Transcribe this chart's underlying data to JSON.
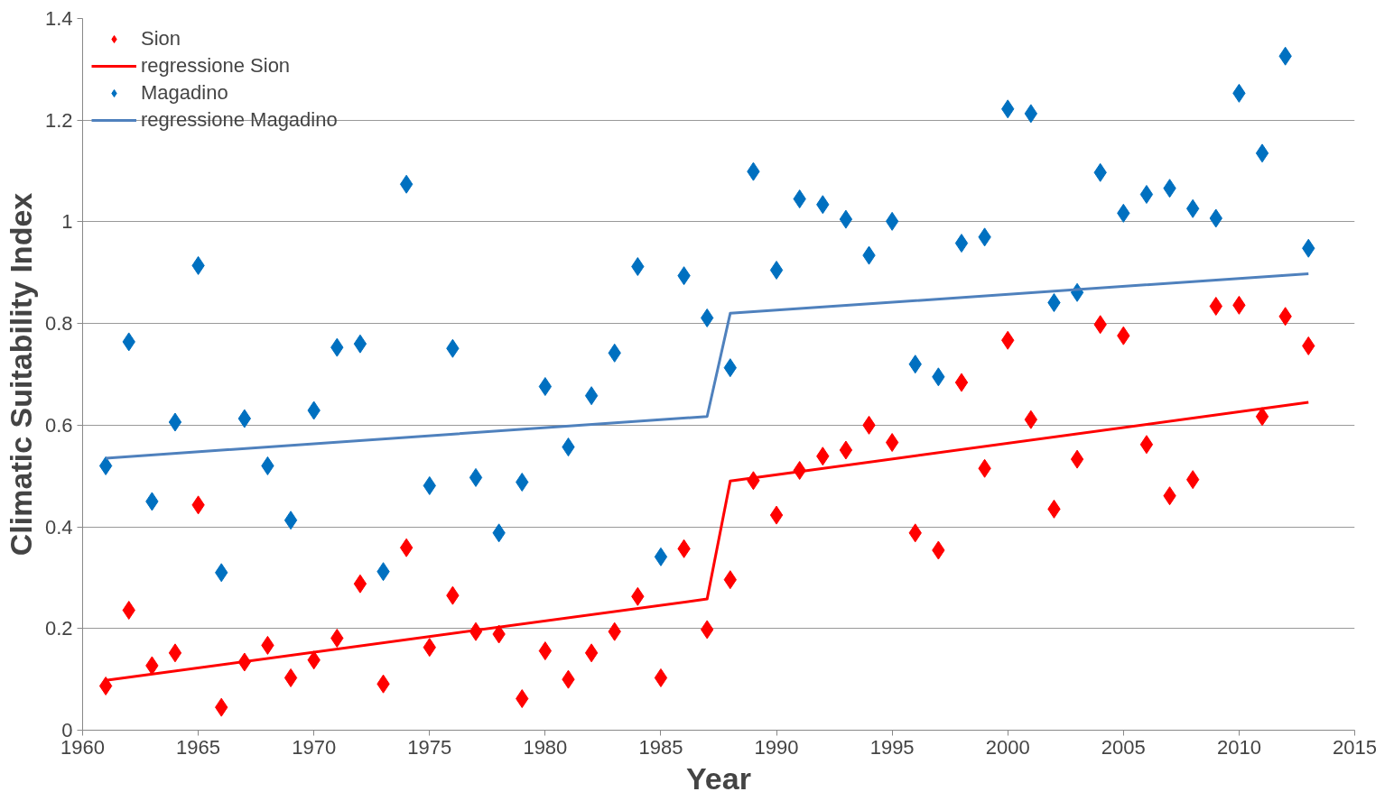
{
  "chart_data": {
    "type": "scatter",
    "xlabel": "Year",
    "ylabel": "Climatic Suitability Index",
    "x": [
      1961,
      1962,
      1963,
      1964,
      1965,
      1966,
      1967,
      1968,
      1969,
      1970,
      1971,
      1972,
      1973,
      1974,
      1975,
      1976,
      1977,
      1978,
      1979,
      1980,
      1981,
      1982,
      1983,
      1984,
      1985,
      1986,
      1987,
      1988,
      1989,
      1990,
      1991,
      1992,
      1993,
      1994,
      1995,
      1996,
      1997,
      1998,
      1999,
      2000,
      2001,
      2002,
      2003,
      2004,
      2005,
      2006,
      2007,
      2008,
      2009,
      2010,
      2011,
      2012,
      2013
    ],
    "series": [
      {
        "name": "Sion",
        "color": "#ff0000",
        "marker": "diamond",
        "values": [
          0.087,
          0.236,
          0.127,
          0.152,
          0.443,
          0.045,
          0.134,
          0.167,
          0.103,
          0.138,
          0.181,
          0.288,
          0.091,
          0.359,
          0.163,
          0.265,
          0.194,
          0.189,
          0.062,
          0.156,
          0.1,
          0.152,
          0.194,
          0.263,
          0.103,
          0.357,
          0.198,
          0.296,
          0.491,
          0.423,
          0.511,
          0.539,
          0.551,
          0.6,
          0.566,
          0.388,
          0.354,
          0.684,
          0.515,
          0.767,
          0.611,
          0.435,
          0.533,
          0.798,
          0.776,
          0.562,
          0.461,
          0.493,
          0.834,
          0.836,
          0.617,
          0.814,
          0.756
        ]
      },
      {
        "name": "regressione Sion",
        "type": "line",
        "color": "#ff0000",
        "marker": "none",
        "line_style": "solid",
        "x": [
          1961,
          1987,
          1988,
          2013
        ],
        "values": [
          0.098,
          0.258,
          0.49,
          0.645
        ]
      },
      {
        "name": "Magadino",
        "color": "#0070c0",
        "marker": "diamond",
        "values": [
          0.52,
          0.764,
          0.45,
          0.606,
          0.914,
          0.31,
          0.613,
          0.52,
          0.413,
          0.629,
          0.753,
          0.76,
          0.312,
          1.074,
          0.481,
          0.751,
          0.497,
          0.388,
          0.488,
          0.676,
          0.557,
          0.658,
          0.742,
          0.912,
          0.341,
          0.894,
          0.811,
          0.713,
          1.099,
          0.905,
          1.045,
          1.034,
          1.005,
          0.934,
          1.001,
          0.72,
          0.695,
          0.958,
          0.97,
          1.222,
          1.213,
          0.841,
          0.861,
          1.097,
          1.017,
          1.054,
          1.066,
          1.026,
          1.007,
          1.253,
          1.135,
          1.326,
          0.948
        ]
      },
      {
        "name": "regressione Magadino",
        "type": "line",
        "color": "#4f81bd",
        "marker": "none",
        "line_style": "solid",
        "x": [
          1961,
          1987,
          1988,
          2013
        ],
        "values": [
          0.535,
          0.617,
          0.82,
          0.898
        ]
      }
    ],
    "xlim": [
      1960,
      2015
    ],
    "xticks": [
      1960,
      1965,
      1970,
      1975,
      1980,
      1985,
      1990,
      1995,
      2000,
      2005,
      2010,
      2015
    ],
    "ylim": [
      0,
      1.4
    ],
    "yticks": [
      0,
      {
        "value": 0.2,
        "label": "0.2"
      },
      {
        "value": 0.4,
        "label": "0.4"
      },
      {
        "value": 0.6,
        "label": "0.6"
      },
      {
        "value": 0.8,
        "label": "0.8"
      },
      1,
      {
        "value": 1.2,
        "label": "1.2"
      },
      {
        "value": 1.4,
        "label": "1.4"
      }
    ],
    "grid": "y",
    "legend": "top left"
  }
}
